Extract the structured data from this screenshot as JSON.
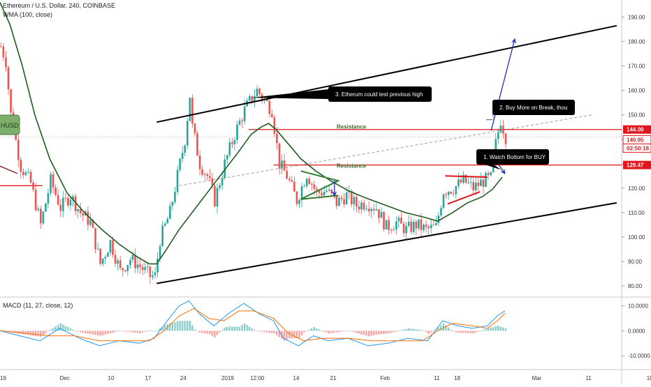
{
  "header": {
    "title": "Ethereum / U.S. Dollar, 240, COINBASE",
    "indicator": "WMA (100, close)"
  },
  "macd_header": "MACD (11, 27, close, 12)",
  "left_label": "HUSD",
  "colors": {
    "up": "#26a69a",
    "down": "#ef5350",
    "wma": "#1f5a1f",
    "channel": "#000000",
    "resistance": "#e0161c",
    "resistance_text": "#3a6b1f",
    "arrow": "#1c2fbf",
    "callout_bg": "#000000",
    "callout_text": "#ffffff",
    "macd_line": "#2196f3",
    "signal_line": "#ff6d00",
    "trend_dashed": "#9e9e9e"
  },
  "callouts": [
    {
      "id": "1",
      "text": "1. Watch Bottom for BUY"
    },
    {
      "id": "2",
      "text": "2. Buy More on Break, thou"
    },
    {
      "id": "3",
      "text": "3. Etherum could test previous high"
    }
  ],
  "resistance_labels": [
    "Resistance",
    "Resistance"
  ],
  "chart_data": [
    {
      "type": "candlestick",
      "title": "Ethereum / U.S. Dollar, 240, COINBASE",
      "price_axis": {
        "ticks": [
          "190.00",
          "180.00",
          "170.00",
          "160.00",
          "150.00",
          "140.00",
          "130.00",
          "120.00",
          "110.00",
          "100.00",
          "90.00",
          "80.00"
        ],
        "ylim": [
          76,
          197
        ]
      },
      "time_axis": {
        "ticks": [
          "19",
          "Dec",
          "10",
          "17",
          "24",
          "2019",
          "12:00",
          "14",
          "21",
          "Feb",
          "11",
          "18",
          "Mar",
          "11",
          "18"
        ]
      },
      "price_badges": [
        {
          "value": "144.00",
          "kind": "resistance"
        },
        {
          "value": "140.95",
          "kind": "last"
        },
        {
          "value": "02:50:18",
          "kind": "countdown"
        },
        {
          "value": "129.47",
          "kind": "resistance"
        }
      ],
      "resistance_levels": [
        144.0,
        129.47
      ],
      "wma_100": [
        {
          "t": 0,
          "v": 196
        },
        {
          "t": 4,
          "v": 187
        },
        {
          "t": 9,
          "v": 170
        },
        {
          "t": 14,
          "v": 150
        },
        {
          "t": 20,
          "v": 132
        },
        {
          "t": 27,
          "v": 118
        },
        {
          "t": 34,
          "v": 110
        },
        {
          "t": 41,
          "v": 103
        },
        {
          "t": 48,
          "v": 97
        },
        {
          "t": 55,
          "v": 92
        },
        {
          "t": 60,
          "v": 89
        },
        {
          "t": 63,
          "v": 89
        },
        {
          "t": 67,
          "v": 95
        },
        {
          "t": 72,
          "v": 103
        },
        {
          "t": 78,
          "v": 111
        },
        {
          "t": 84,
          "v": 119
        },
        {
          "t": 90,
          "v": 127
        },
        {
          "t": 96,
          "v": 135
        },
        {
          "t": 101,
          "v": 142
        },
        {
          "t": 105,
          "v": 145
        },
        {
          "t": 108,
          "v": 146.5
        },
        {
          "t": 111,
          "v": 144
        },
        {
          "t": 116,
          "v": 138
        },
        {
          "t": 121,
          "v": 132
        },
        {
          "t": 127,
          "v": 127
        },
        {
          "t": 133,
          "v": 123
        },
        {
          "t": 140,
          "v": 119
        },
        {
          "t": 147,
          "v": 116
        },
        {
          "t": 155,
          "v": 113
        },
        {
          "t": 163,
          "v": 110
        },
        {
          "t": 171,
          "v": 108
        },
        {
          "t": 176,
          "v": 106.5
        },
        {
          "t": 182,
          "v": 110
        },
        {
          "t": 188,
          "v": 114
        },
        {
          "t": 194,
          "v": 116.5
        },
        {
          "t": 198,
          "v": 119.5
        },
        {
          "t": 202,
          "v": 124.5
        }
      ],
      "channel": {
        "upper": [
          {
            "t": 63,
            "v": 147
          },
          {
            "t": 248,
            "v": 186.5
          }
        ],
        "lower": [
          {
            "t": 63,
            "v": 81
          },
          {
            "t": 248,
            "v": 114
          }
        ]
      },
      "key_prices": [
        {
          "t": 0,
          "v": 178
        },
        {
          "t": 2,
          "v": 172
        },
        {
          "t": 4,
          "v": 150
        },
        {
          "t": 8,
          "v": 129
        },
        {
          "t": 12,
          "v": 122
        },
        {
          "t": 16,
          "v": 105
        },
        {
          "t": 20,
          "v": 123
        },
        {
          "t": 24,
          "v": 112
        },
        {
          "t": 28,
          "v": 117
        },
        {
          "t": 32,
          "v": 110
        },
        {
          "t": 36,
          "v": 106
        },
        {
          "t": 40,
          "v": 89
        },
        {
          "t": 44,
          "v": 98
        },
        {
          "t": 48,
          "v": 86
        },
        {
          "t": 52,
          "v": 91
        },
        {
          "t": 56,
          "v": 88
        },
        {
          "t": 60,
          "v": 84
        },
        {
          "t": 62,
          "v": 84
        },
        {
          "t": 64,
          "v": 99
        },
        {
          "t": 68,
          "v": 110
        },
        {
          "t": 71,
          "v": 125
        },
        {
          "t": 74,
          "v": 140
        },
        {
          "t": 76,
          "v": 158
        },
        {
          "t": 77,
          "v": 145
        },
        {
          "t": 80,
          "v": 130
        },
        {
          "t": 83,
          "v": 125
        },
        {
          "t": 86,
          "v": 115
        },
        {
          "t": 90,
          "v": 130
        },
        {
          "t": 94,
          "v": 142
        },
        {
          "t": 98,
          "v": 152
        },
        {
          "t": 101,
          "v": 157
        },
        {
          "t": 103,
          "v": 160
        },
        {
          "t": 106,
          "v": 156
        },
        {
          "t": 109,
          "v": 152
        },
        {
          "t": 112,
          "v": 130
        },
        {
          "t": 115,
          "v": 125
        },
        {
          "t": 119,
          "v": 115
        },
        {
          "t": 123,
          "v": 126
        },
        {
          "t": 127,
          "v": 118
        },
        {
          "t": 131,
          "v": 119
        },
        {
          "t": 135,
          "v": 114
        },
        {
          "t": 139,
          "v": 117
        },
        {
          "t": 143,
          "v": 113
        },
        {
          "t": 147,
          "v": 114
        },
        {
          "t": 151,
          "v": 112
        },
        {
          "t": 155,
          "v": 104
        },
        {
          "t": 159,
          "v": 106
        },
        {
          "t": 163,
          "v": 103
        },
        {
          "t": 167,
          "v": 105
        },
        {
          "t": 171,
          "v": 103
        },
        {
          "t": 175,
          "v": 104
        },
        {
          "t": 178,
          "v": 119
        },
        {
          "t": 182,
          "v": 120
        },
        {
          "t": 186,
          "v": 123
        },
        {
          "t": 190,
          "v": 120
        },
        {
          "t": 194,
          "v": 123
        },
        {
          "t": 197,
          "v": 124
        },
        {
          "t": 199,
          "v": 138
        },
        {
          "t": 201,
          "v": 148
        },
        {
          "t": 203,
          "v": 141
        }
      ],
      "macd": {
        "ticks": [
          "10.0000",
          "0.0000",
          "-10.0000"
        ],
        "ylim": [
          -15,
          13
        ],
        "macd_line": [
          {
            "t": 0,
            "v": 0
          },
          {
            "t": 8,
            "v": -2
          },
          {
            "t": 16,
            "v": -4
          },
          {
            "t": 24,
            "v": 1
          },
          {
            "t": 32,
            "v": -3
          },
          {
            "t": 40,
            "v": -6
          },
          {
            "t": 48,
            "v": -4
          },
          {
            "t": 56,
            "v": -5
          },
          {
            "t": 62,
            "v": -3
          },
          {
            "t": 68,
            "v": 5
          },
          {
            "t": 72,
            "v": 10
          },
          {
            "t": 76,
            "v": 12
          },
          {
            "t": 80,
            "v": 7
          },
          {
            "t": 86,
            "v": 2
          },
          {
            "t": 92,
            "v": 7
          },
          {
            "t": 98,
            "v": 11
          },
          {
            "t": 104,
            "v": 7
          },
          {
            "t": 110,
            "v": 4
          },
          {
            "t": 114,
            "v": -3
          },
          {
            "t": 120,
            "v": -6
          },
          {
            "t": 126,
            "v": -2
          },
          {
            "t": 132,
            "v": -4
          },
          {
            "t": 140,
            "v": -3
          },
          {
            "t": 148,
            "v": -6
          },
          {
            "t": 156,
            "v": -5
          },
          {
            "t": 164,
            "v": -3
          },
          {
            "t": 172,
            "v": -4
          },
          {
            "t": 178,
            "v": 4
          },
          {
            "t": 184,
            "v": 2
          },
          {
            "t": 190,
            "v": 1
          },
          {
            "t": 196,
            "v": 2
          },
          {
            "t": 200,
            "v": 6
          },
          {
            "t": 203,
            "v": 8
          }
        ],
        "signal_line": [
          {
            "t": 0,
            "v": 0
          },
          {
            "t": 10,
            "v": -1
          },
          {
            "t": 20,
            "v": -2
          },
          {
            "t": 30,
            "v": -2
          },
          {
            "t": 40,
            "v": -4
          },
          {
            "t": 50,
            "v": -4
          },
          {
            "t": 60,
            "v": -4
          },
          {
            "t": 66,
            "v": 0
          },
          {
            "t": 72,
            "v": 6
          },
          {
            "t": 78,
            "v": 9
          },
          {
            "t": 84,
            "v": 5
          },
          {
            "t": 90,
            "v": 4
          },
          {
            "t": 96,
            "v": 8
          },
          {
            "t": 102,
            "v": 8
          },
          {
            "t": 110,
            "v": 5
          },
          {
            "t": 116,
            "v": -1
          },
          {
            "t": 122,
            "v": -4
          },
          {
            "t": 130,
            "v": -3
          },
          {
            "t": 140,
            "v": -3
          },
          {
            "t": 150,
            "v": -4
          },
          {
            "t": 160,
            "v": -4
          },
          {
            "t": 170,
            "v": -4
          },
          {
            "t": 176,
            "v": 0
          },
          {
            "t": 182,
            "v": 3
          },
          {
            "t": 190,
            "v": 2
          },
          {
            "t": 196,
            "v": 1
          },
          {
            "t": 200,
            "v": 4
          },
          {
            "t": 203,
            "v": 7
          }
        ]
      }
    }
  ]
}
